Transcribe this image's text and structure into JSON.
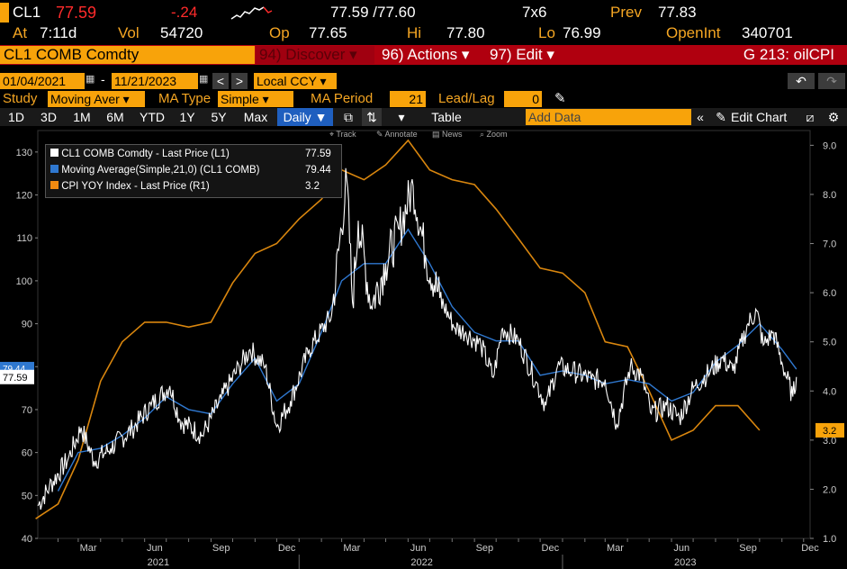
{
  "header": {
    "ticker": "CL1",
    "last": "77.59",
    "change": "-.24",
    "bid_ask": "77.59 /77.60",
    "size": "7x6",
    "prev_label": "Prev",
    "prev": "77.83",
    "at_label": "At",
    "at_time": "7:11d",
    "vol_label": "Vol",
    "vol": "54720",
    "op_label": "Op",
    "op": "77.65",
    "hi_label": "Hi",
    "hi": "77.80",
    "lo_label": "Lo",
    "lo": "76.99",
    "oi_label": "OpenInt",
    "oi": "340701"
  },
  "toolbar": {
    "security": "CL1 COMB Comdty",
    "discover": "94) Discover",
    "actions": "96) Actions",
    "edit": "97) Edit",
    "page_id": "G 213: oilCPI"
  },
  "range": {
    "start": "01/04/2021",
    "end": "11/21/2023",
    "currency": "Local CCY"
  },
  "study": {
    "study_label": "Study",
    "study_value": "Moving Aver",
    "ma_type_label": "MA Type",
    "ma_type_value": "Simple",
    "ma_period_label": "MA Period",
    "ma_period_value": "21",
    "leadlag_label": "Lead/Lag",
    "leadlag_value": "0"
  },
  "periods": [
    "1D",
    "3D",
    "1M",
    "6M",
    "YTD",
    "1Y",
    "5Y",
    "Max"
  ],
  "freq": "Daily ▼",
  "table_label": "Table",
  "add_data_placeholder": "Add Data",
  "edit_chart": "Edit Chart",
  "subtools": [
    "Track",
    "Annotate",
    "News",
    "Zoom"
  ],
  "legend": [
    {
      "label": "CL1 COMB Comdty - Last Price (L1)",
      "value": "77.59",
      "color": "#ffffff"
    },
    {
      "label": "Moving Average(Simple,21,0) (CL1 COMB)",
      "value": "79.44",
      "color": "#2f78d0"
    },
    {
      "label": "CPI YOY Index - Last Price (R1)",
      "value": "3.2",
      "color": "#f08a10"
    }
  ],
  "colors": {
    "price": "#ffffff",
    "ma": "#2f78d0",
    "cpi": "#d9860e",
    "accent_orange": "#f8a30a",
    "bar_red": "#b0000f"
  },
  "chart_data": {
    "type": "line",
    "left_axis": {
      "ylim": [
        40,
        135
      ],
      "ticks": [
        40,
        50,
        60,
        70,
        80,
        90,
        100,
        110,
        120,
        130
      ],
      "current_label": "77.59",
      "ma_label": "79.44"
    },
    "right_axis": {
      "ylim": [
        1.0,
        9.3
      ],
      "ticks": [
        "1.0",
        "2.0",
        "3.0",
        "4.0",
        "5.0",
        "6.0",
        "7.0",
        "8.0",
        "9.0"
      ],
      "current_label": "3.2"
    },
    "x_months": [
      "Mar",
      "Jun",
      "Sep",
      "Dec",
      "Mar",
      "Jun",
      "Sep",
      "Dec",
      "Mar",
      "Jun",
      "Sep",
      "Dec"
    ],
    "x_years": [
      "2021",
      "2022",
      "2023"
    ],
    "series": [
      {
        "name": "CL1 COMB Comdty - Last Price (L1)",
        "axis": "left",
        "x": [
          "2021-01-04",
          "2021-01-20",
          "2021-02-15",
          "2021-03-05",
          "2021-03-23",
          "2021-04-15",
          "2021-05-15",
          "2021-06-10",
          "2021-07-06",
          "2021-07-20",
          "2021-08-20",
          "2021-09-15",
          "2021-10-10",
          "2021-10-25",
          "2021-11-15",
          "2021-12-01",
          "2021-12-20",
          "2022-01-15",
          "2022-02-15",
          "2022-03-08",
          "2022-03-16",
          "2022-03-24",
          "2022-04-11",
          "2022-05-01",
          "2022-05-20",
          "2022-06-08",
          "2022-06-25",
          "2022-07-15",
          "2022-08-05",
          "2022-08-20",
          "2022-09-10",
          "2022-09-27",
          "2022-10-10",
          "2022-11-01",
          "2022-11-25",
          "2022-12-09",
          "2022-12-25",
          "2023-01-15",
          "2023-02-10",
          "2023-03-01",
          "2023-03-17",
          "2023-04-05",
          "2023-04-20",
          "2023-05-04",
          "2023-05-25",
          "2023-06-12",
          "2023-07-01",
          "2023-07-25",
          "2023-08-10",
          "2023-08-25",
          "2023-09-15",
          "2023-09-27",
          "2023-10-06",
          "2023-10-20",
          "2023-11-01",
          "2023-11-16",
          "2023-11-21"
        ],
        "y": [
          47.6,
          52.0,
          58.5,
          65.8,
          58.0,
          61.0,
          65.5,
          71.0,
          75.5,
          67.5,
          64.0,
          72.5,
          80.0,
          84.0,
          80.0,
          66.0,
          72.0,
          84.0,
          92.0,
          123.7,
          95.0,
          114.0,
          94.0,
          104.0,
          112.0,
          122.1,
          106.0,
          96.0,
          89.0,
          88.0,
          85.0,
          77.5,
          89.0,
          86.0,
          76.5,
          71.0,
          80.0,
          79.0,
          77.0,
          77.0,
          66.7,
          80.0,
          78.0,
          69.0,
          71.0,
          68.0,
          75.0,
          79.0,
          82.0,
          79.0,
          90.0,
          93.0,
          85.0,
          88.0,
          81.0,
          73.0,
          77.6
        ]
      },
      {
        "name": "Moving Average(Simple,21,0) (CL1 COMB)",
        "axis": "left",
        "x": [
          "2021-02-01",
          "2021-03-01",
          "2021-04-01",
          "2021-05-01",
          "2021-06-01",
          "2021-07-01",
          "2021-08-01",
          "2021-09-01",
          "2021-10-01",
          "2021-11-01",
          "2021-12-01",
          "2022-01-01",
          "2022-02-01",
          "2022-03-01",
          "2022-04-01",
          "2022-05-01",
          "2022-06-01",
          "2022-07-01",
          "2022-08-01",
          "2022-09-01",
          "2022-10-01",
          "2022-11-01",
          "2022-12-01",
          "2023-01-01",
          "2023-02-01",
          "2023-03-01",
          "2023-04-01",
          "2023-05-01",
          "2023-06-01",
          "2023-07-01",
          "2023-08-01",
          "2023-09-01",
          "2023-10-01",
          "2023-11-01",
          "2023-11-21"
        ],
        "y": [
          51,
          60,
          61,
          64,
          68,
          73,
          70,
          69,
          76,
          82,
          72,
          76,
          88,
          100,
          104,
          104,
          112,
          104,
          94,
          88,
          86,
          86,
          78,
          79,
          78,
          76,
          77,
          76,
          72,
          74,
          81,
          85,
          90,
          84,
          79.4
        ]
      },
      {
        "name": "CPI YOY Index - Last Price (R1)",
        "axis": "right",
        "x": [
          "2021-01-01",
          "2021-02-01",
          "2021-03-01",
          "2021-04-01",
          "2021-05-01",
          "2021-06-01",
          "2021-07-01",
          "2021-08-01",
          "2021-09-01",
          "2021-10-01",
          "2021-11-01",
          "2021-12-01",
          "2022-01-01",
          "2022-02-01",
          "2022-03-01",
          "2022-04-01",
          "2022-05-01",
          "2022-06-01",
          "2022-07-01",
          "2022-08-01",
          "2022-09-01",
          "2022-10-01",
          "2022-11-01",
          "2022-12-01",
          "2023-01-01",
          "2023-02-01",
          "2023-03-01",
          "2023-04-01",
          "2023-05-01",
          "2023-06-01",
          "2023-07-01",
          "2023-08-01",
          "2023-09-01",
          "2023-10-01"
        ],
        "y": [
          1.4,
          1.7,
          2.6,
          4.2,
          5.0,
          5.4,
          5.4,
          5.3,
          5.4,
          6.2,
          6.8,
          7.0,
          7.5,
          7.9,
          8.5,
          8.3,
          8.6,
          9.1,
          8.5,
          8.3,
          8.2,
          7.7,
          7.1,
          6.5,
          6.4,
          6.0,
          5.0,
          4.9,
          4.0,
          3.0,
          3.2,
          3.7,
          3.7,
          3.2
        ]
      }
    ]
  }
}
